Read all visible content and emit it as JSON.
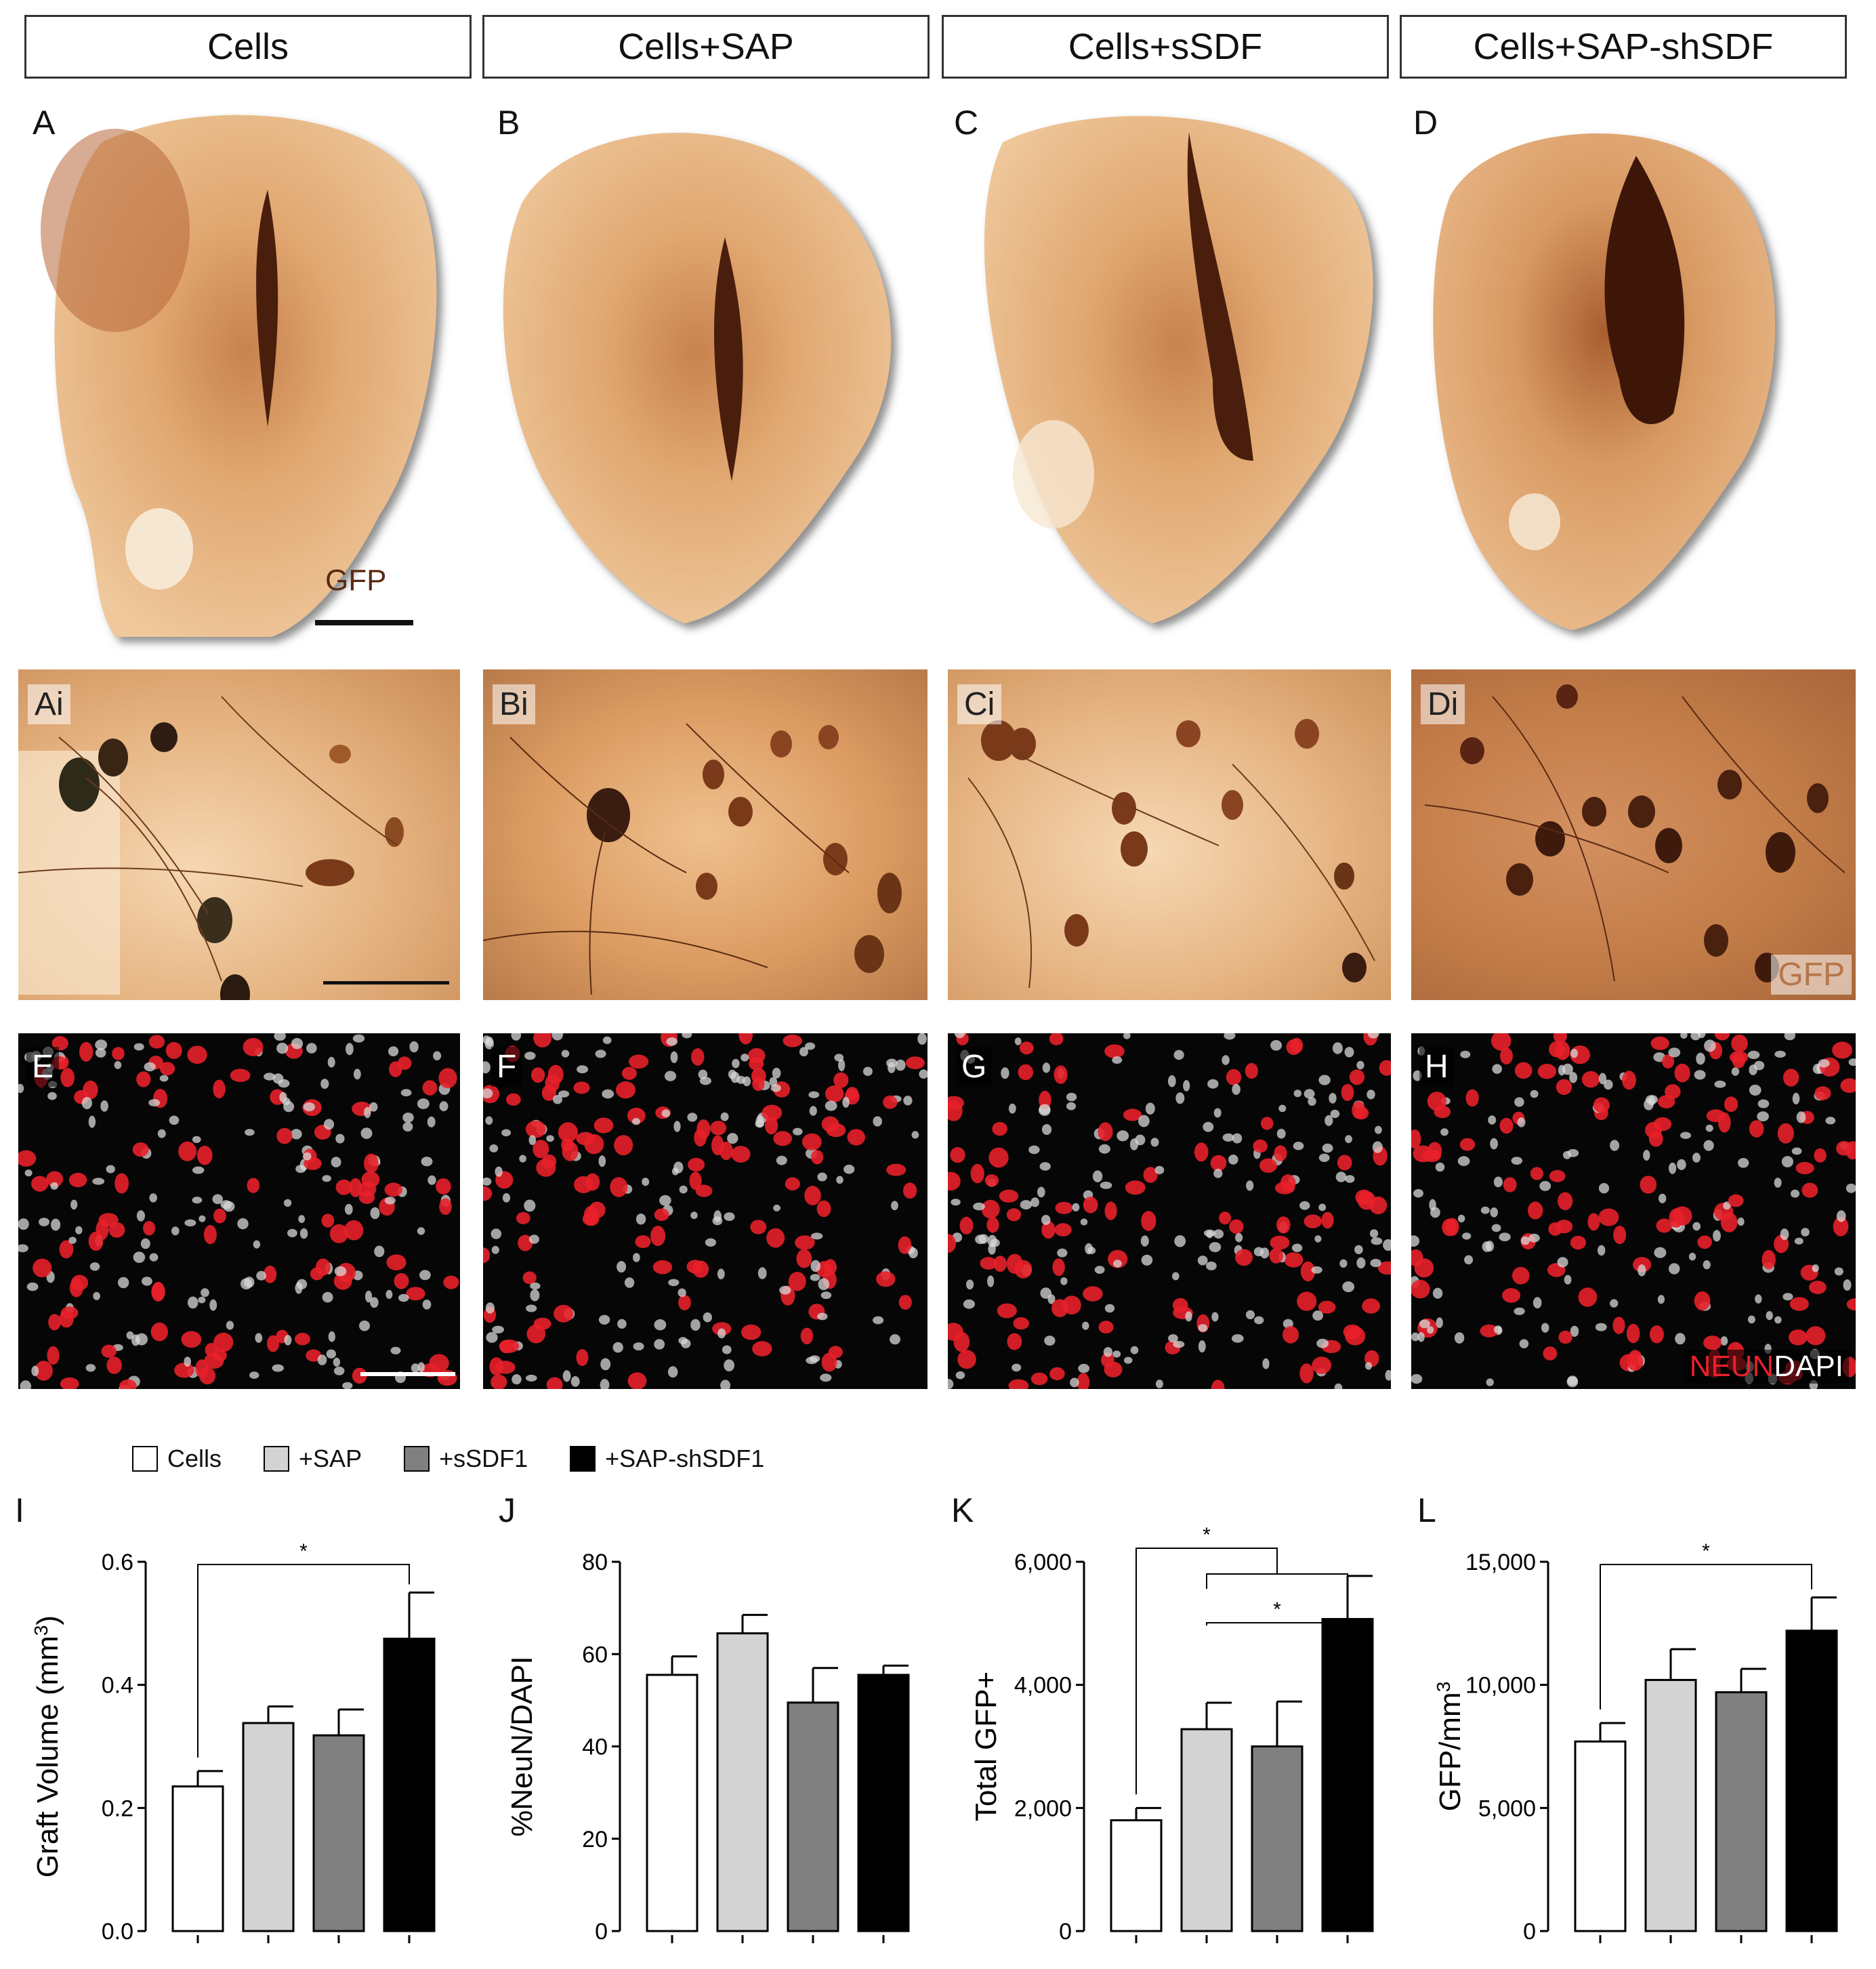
{
  "headers": [
    "Cells",
    "Cells+SAP",
    "Cells+sSDF",
    "Cells+SAP-shSDF"
  ],
  "panels_top": [
    "A",
    "B",
    "C",
    "D"
  ],
  "panels_mid": [
    "Ai",
    "Bi",
    "Ci",
    "Di"
  ],
  "panels_fluo": [
    "E",
    "F",
    "G",
    "H"
  ],
  "stain_gfp": "GFP",
  "stain_neun": "NEUN",
  "stain_dapi": "DAPI",
  "colors": {
    "brown_dark": "#5a2a12",
    "brown_mid": "#b5764a",
    "tissue": "#e9b88a",
    "neun_red": "#e8202a",
    "bg": "#ffffff"
  },
  "legend": [
    {
      "label": "Cells",
      "color": "#ffffff"
    },
    {
      "label": "+SAP",
      "color": "#d3d3d3"
    },
    {
      "label": "+sSDF1",
      "color": "#808080"
    },
    {
      "label": "+SAP-shSDF1",
      "color": "#000000"
    }
  ],
  "chart_data": [
    {
      "type": "bar",
      "panel": "I",
      "categories": [
        "Cells",
        "+SAP",
        "+sSDF1",
        "+SAP-shSDF1"
      ],
      "values": [
        0.235,
        0.338,
        0.318,
        0.475
      ],
      "errors": [
        0.025,
        0.027,
        0.042,
        0.075
      ],
      "ylabel": "Graft Volume (mm",
      "ylabel_sup": "3",
      "ylabel_end": ")",
      "ylim": [
        0,
        0.6
      ],
      "ticks": [
        "0.0",
        "0.2",
        "0.4",
        "0.6"
      ],
      "tick_values": [
        0,
        0.2,
        0.4,
        0.6
      ],
      "significance": [
        {
          "from": 0,
          "to": 3,
          "label": "*"
        }
      ]
    },
    {
      "type": "bar",
      "panel": "J",
      "categories": [
        "Cells",
        "+SAP",
        "+sSDF1",
        "+SAP-shSDF1"
      ],
      "values": [
        55.5,
        64.5,
        49.5,
        55.5
      ],
      "errors": [
        4.0,
        4.0,
        7.5,
        2.0
      ],
      "ylabel": "%NeuN/DAPI",
      "ylabel_sup": "",
      "ylabel_end": "",
      "ylim": [
        0,
        80
      ],
      "ticks": [
        "0",
        "20",
        "40",
        "60",
        "80"
      ],
      "tick_values": [
        0,
        20,
        40,
        60,
        80
      ],
      "significance": []
    },
    {
      "type": "bar",
      "panel": "K",
      "categories": [
        "Cells",
        "+SAP",
        "+sSDF1",
        "+SAP-shSDF1"
      ],
      "values": [
        1800,
        3280,
        3000,
        5070
      ],
      "errors": [
        200,
        430,
        730,
        700
      ],
      "ylabel": "Total GFP+",
      "ylabel_sup": "",
      "ylabel_end": "",
      "ylim": [
        0,
        6000
      ],
      "ticks": [
        "0",
        "2,000",
        "4,000",
        "6,000"
      ],
      "tick_values": [
        0,
        2000,
        4000,
        6000
      ],
      "significance": [
        {
          "from": 0,
          "to": "1-3",
          "label": "*"
        },
        {
          "from": 1,
          "to": 3,
          "label": "*"
        }
      ]
    },
    {
      "type": "bar",
      "panel": "L",
      "categories": [
        "Cells",
        "+SAP",
        "+sSDF1",
        "+SAP-shSDF1"
      ],
      "values": [
        7700,
        10200,
        9700,
        12200
      ],
      "errors": [
        750,
        1250,
        950,
        1350
      ],
      "ylabel": "GFP/mm",
      "ylabel_sup": "3",
      "ylabel_end": "",
      "ylim": [
        0,
        15000
      ],
      "ticks": [
        "0",
        "5,000",
        "10,000",
        "15,000"
      ],
      "tick_values": [
        0,
        5000,
        10000,
        15000
      ],
      "significance": [
        {
          "from": 0,
          "to": 3,
          "label": "*"
        }
      ]
    }
  ]
}
